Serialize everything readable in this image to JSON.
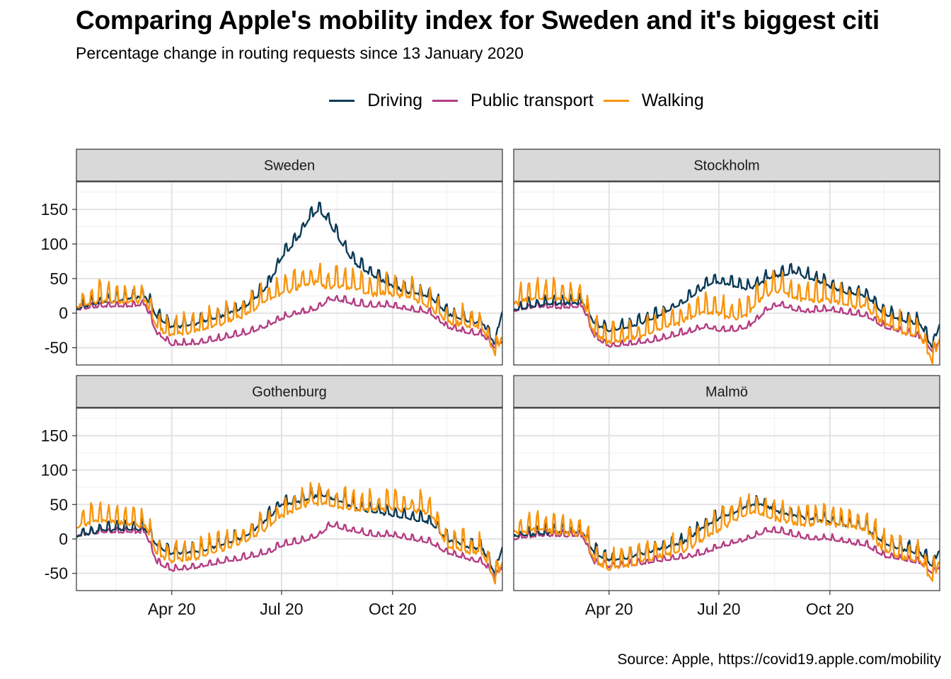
{
  "title": "Comparing Apple's mobility index for Sweden and it's biggest citi",
  "subtitle": "Percentage change in routing requests since 13 January 2020",
  "caption": "Source: Apple, https://covid19.apple.com/mobility",
  "legend": [
    {
      "label": "Driving",
      "color": "#0b3a56"
    },
    {
      "label": "Public transport",
      "color": "#b43e83"
    },
    {
      "label": "Walking",
      "color": "#f7950f"
    }
  ],
  "chart_data": {
    "type": "line",
    "facets": [
      "Sweden",
      "Stockholm",
      "Gothenburg",
      "Malmö"
    ],
    "x_range": [
      "2020-01-13",
      "2020-12-31"
    ],
    "ylim": [
      -75,
      190
    ],
    "y_ticks": [
      -50,
      0,
      50,
      100,
      150
    ],
    "y_tick_labels": [
      "-50",
      "0",
      "50",
      "100",
      "150"
    ],
    "x_ticks": [
      "2020-04-01",
      "2020-07-01",
      "2020-10-01"
    ],
    "x_tick_labels": [
      "Apr 20",
      "Jul 20",
      "Oct 20"
    ],
    "grid": true,
    "legend_position": "top",
    "panels": [
      {
        "facet": "Sweden",
        "series": [
          {
            "name": "Driving",
            "x": [
              "2020-01-13",
              "2020-02-01",
              "2020-02-20",
              "2020-03-10",
              "2020-03-20",
              "2020-04-01",
              "2020-04-20",
              "2020-05-10",
              "2020-06-01",
              "2020-06-20",
              "2020-07-01",
              "2020-07-15",
              "2020-07-25",
              "2020-08-01",
              "2020-08-10",
              "2020-08-20",
              "2020-09-01",
              "2020-09-15",
              "2020-10-01",
              "2020-10-15",
              "2020-11-01",
              "2020-11-15",
              "2020-12-01",
              "2020-12-15",
              "2020-12-25",
              "2020-12-31"
            ],
            "y": [
              8,
              15,
              20,
              25,
              -5,
              -20,
              -15,
              -5,
              10,
              40,
              80,
              110,
              140,
              150,
              130,
              100,
              70,
              55,
              40,
              30,
              25,
              0,
              -10,
              -15,
              -45,
              5
            ]
          },
          {
            "name": "Public transport",
            "x": [
              "2020-01-13",
              "2020-02-01",
              "2020-02-20",
              "2020-03-10",
              "2020-03-20",
              "2020-04-01",
              "2020-04-20",
              "2020-05-10",
              "2020-06-01",
              "2020-06-20",
              "2020-07-01",
              "2020-07-15",
              "2020-07-25",
              "2020-08-01",
              "2020-08-10",
              "2020-08-20",
              "2020-09-01",
              "2020-09-15",
              "2020-10-01",
              "2020-10-15",
              "2020-11-01",
              "2020-11-15",
              "2020-12-01",
              "2020-12-15",
              "2020-12-25",
              "2020-12-31"
            ],
            "y": [
              5,
              10,
              10,
              12,
              -30,
              -45,
              -45,
              -38,
              -30,
              -18,
              -8,
              0,
              3,
              8,
              20,
              18,
              12,
              10,
              10,
              5,
              0,
              -20,
              -28,
              -32,
              -50,
              -40
            ]
          },
          {
            "name": "Walking",
            "x": [
              "2020-01-13",
              "2020-02-01",
              "2020-02-20",
              "2020-03-10",
              "2020-03-20",
              "2020-04-01",
              "2020-04-20",
              "2020-05-10",
              "2020-06-01",
              "2020-06-20",
              "2020-07-01",
              "2020-07-15",
              "2020-07-25",
              "2020-08-01",
              "2020-08-10",
              "2020-08-20",
              "2020-09-01",
              "2020-09-15",
              "2020-10-01",
              "2020-10-15",
              "2020-11-01",
              "2020-11-15",
              "2020-12-01",
              "2020-12-15",
              "2020-12-25",
              "2020-12-31"
            ],
            "y": [
              10,
              20,
              18,
              20,
              -20,
              -30,
              -25,
              -15,
              0,
              20,
              30,
              40,
              45,
              45,
              40,
              40,
              35,
              30,
              30,
              25,
              10,
              -10,
              -15,
              -20,
              -60,
              -30
            ]
          }
        ]
      },
      {
        "facet": "Stockholm",
        "series": [
          {
            "name": "Driving",
            "x": [
              "2020-01-13",
              "2020-02-01",
              "2020-02-20",
              "2020-03-10",
              "2020-03-20",
              "2020-04-01",
              "2020-04-20",
              "2020-05-10",
              "2020-06-01",
              "2020-06-20",
              "2020-07-01",
              "2020-07-15",
              "2020-07-25",
              "2020-08-01",
              "2020-08-10",
              "2020-08-20",
              "2020-09-01",
              "2020-09-15",
              "2020-10-01",
              "2020-10-15",
              "2020-11-01",
              "2020-11-15",
              "2020-12-01",
              "2020-12-15",
              "2020-12-25",
              "2020-12-31"
            ],
            "y": [
              5,
              12,
              15,
              15,
              -15,
              -25,
              -18,
              -5,
              15,
              40,
              45,
              40,
              35,
              40,
              50,
              55,
              60,
              50,
              40,
              30,
              25,
              0,
              -10,
              -15,
              -50,
              -15
            ]
          },
          {
            "name": "Public transport",
            "x": [
              "2020-01-13",
              "2020-02-01",
              "2020-02-20",
              "2020-03-10",
              "2020-03-20",
              "2020-04-01",
              "2020-04-20",
              "2020-05-10",
              "2020-06-01",
              "2020-06-20",
              "2020-07-01",
              "2020-07-15",
              "2020-07-25",
              "2020-08-01",
              "2020-08-10",
              "2020-08-20",
              "2020-09-01",
              "2020-09-15",
              "2020-10-01",
              "2020-10-15",
              "2020-11-01",
              "2020-11-15",
              "2020-12-01",
              "2020-12-15",
              "2020-12-25",
              "2020-12-31"
            ],
            "y": [
              3,
              10,
              8,
              10,
              -35,
              -48,
              -45,
              -40,
              -30,
              -20,
              -25,
              -25,
              -20,
              -10,
              5,
              12,
              5,
              2,
              5,
              0,
              -5,
              -20,
              -28,
              -35,
              -55,
              -40
            ]
          },
          {
            "name": "Walking",
            "x": [
              "2020-01-13",
              "2020-02-01",
              "2020-02-20",
              "2020-03-10",
              "2020-03-20",
              "2020-04-01",
              "2020-04-20",
              "2020-05-10",
              "2020-06-01",
              "2020-06-20",
              "2020-07-01",
              "2020-07-15",
              "2020-07-25",
              "2020-08-01",
              "2020-08-10",
              "2020-08-20",
              "2020-09-01",
              "2020-09-15",
              "2020-10-01",
              "2020-10-15",
              "2020-11-01",
              "2020-11-15",
              "2020-12-01",
              "2020-12-15",
              "2020-12-25",
              "2020-12-31"
            ],
            "y": [
              15,
              25,
              22,
              20,
              -30,
              -40,
              -35,
              -25,
              -10,
              5,
              0,
              -5,
              0,
              15,
              30,
              35,
              25,
              20,
              20,
              15,
              10,
              -15,
              -25,
              -30,
              -70,
              -35
            ]
          }
        ]
      },
      {
        "facet": "Gothenburg",
        "series": [
          {
            "name": "Driving",
            "x": [
              "2020-01-13",
              "2020-02-01",
              "2020-02-20",
              "2020-03-10",
              "2020-03-20",
              "2020-04-01",
              "2020-04-20",
              "2020-05-10",
              "2020-06-01",
              "2020-06-20",
              "2020-07-01",
              "2020-07-15",
              "2020-07-25",
              "2020-08-01",
              "2020-08-10",
              "2020-08-20",
              "2020-09-01",
              "2020-09-15",
              "2020-10-01",
              "2020-10-15",
              "2020-11-01",
              "2020-11-15",
              "2020-12-01",
              "2020-12-15",
              "2020-12-25",
              "2020-12-31"
            ],
            "y": [
              5,
              12,
              15,
              15,
              -10,
              -20,
              -18,
              -10,
              5,
              30,
              50,
              55,
              60,
              65,
              60,
              55,
              45,
              40,
              35,
              30,
              25,
              0,
              -10,
              -15,
              -50,
              -10
            ]
          },
          {
            "name": "Public transport",
            "x": [
              "2020-01-13",
              "2020-02-01",
              "2020-02-20",
              "2020-03-10",
              "2020-03-20",
              "2020-04-01",
              "2020-04-20",
              "2020-05-10",
              "2020-06-01",
              "2020-06-20",
              "2020-07-01",
              "2020-07-15",
              "2020-07-25",
              "2020-08-01",
              "2020-08-10",
              "2020-08-20",
              "2020-09-01",
              "2020-09-15",
              "2020-10-01",
              "2020-10-15",
              "2020-11-01",
              "2020-11-15",
              "2020-12-01",
              "2020-12-15",
              "2020-12-25",
              "2020-12-31"
            ],
            "y": [
              5,
              10,
              10,
              10,
              -35,
              -45,
              -42,
              -35,
              -28,
              -20,
              -10,
              -5,
              0,
              5,
              20,
              15,
              10,
              5,
              5,
              0,
              -5,
              -20,
              -28,
              -35,
              -55,
              -40
            ]
          },
          {
            "name": "Walking",
            "x": [
              "2020-01-13",
              "2020-02-01",
              "2020-02-20",
              "2020-03-10",
              "2020-03-20",
              "2020-04-01",
              "2020-04-20",
              "2020-05-10",
              "2020-06-01",
              "2020-06-20",
              "2020-07-01",
              "2020-07-15",
              "2020-07-25",
              "2020-08-01",
              "2020-08-10",
              "2020-08-20",
              "2020-09-01",
              "2020-09-15",
              "2020-10-01",
              "2020-10-15",
              "2020-11-01",
              "2020-11-15",
              "2020-12-01",
              "2020-12-15",
              "2020-12-25",
              "2020-12-31"
            ],
            "y": [
              20,
              30,
              25,
              20,
              -20,
              -30,
              -25,
              -15,
              0,
              20,
              35,
              45,
              55,
              55,
              50,
              50,
              45,
              45,
              45,
              45,
              40,
              -10,
              -15,
              -20,
              -60,
              -30
            ]
          }
        ]
      },
      {
        "facet": "Malmö",
        "series": [
          {
            "name": "Driving",
            "x": [
              "2020-01-13",
              "2020-02-01",
              "2020-02-20",
              "2020-03-10",
              "2020-03-20",
              "2020-04-01",
              "2020-04-20",
              "2020-05-10",
              "2020-06-01",
              "2020-06-20",
              "2020-07-01",
              "2020-07-15",
              "2020-07-25",
              "2020-08-01",
              "2020-08-10",
              "2020-08-20",
              "2020-09-01",
              "2020-09-15",
              "2020-10-01",
              "2020-10-15",
              "2020-11-01",
              "2020-11-15",
              "2020-12-01",
              "2020-12-15",
              "2020-12-25",
              "2020-12-31"
            ],
            "y": [
              5,
              8,
              10,
              10,
              -20,
              -30,
              -25,
              -15,
              -5,
              20,
              30,
              40,
              48,
              52,
              48,
              40,
              35,
              30,
              25,
              20,
              15,
              -5,
              -15,
              -20,
              -40,
              -15
            ]
          },
          {
            "name": "Public transport",
            "x": [
              "2020-01-13",
              "2020-02-01",
              "2020-02-20",
              "2020-03-10",
              "2020-03-20",
              "2020-04-01",
              "2020-04-20",
              "2020-05-10",
              "2020-06-01",
              "2020-06-20",
              "2020-07-01",
              "2020-07-15",
              "2020-07-25",
              "2020-08-01",
              "2020-08-10",
              "2020-08-20",
              "2020-09-01",
              "2020-09-15",
              "2020-10-01",
              "2020-10-15",
              "2020-11-01",
              "2020-11-15",
              "2020-12-01",
              "2020-12-15",
              "2020-12-25",
              "2020-12-31"
            ],
            "y": [
              0,
              5,
              5,
              5,
              -35,
              -40,
              -38,
              -32,
              -28,
              -20,
              -12,
              -5,
              0,
              5,
              12,
              10,
              5,
              0,
              0,
              -5,
              -10,
              -25,
              -30,
              -35,
              -50,
              -40
            ]
          },
          {
            "name": "Walking",
            "x": [
              "2020-01-13",
              "2020-02-01",
              "2020-02-20",
              "2020-03-10",
              "2020-03-20",
              "2020-04-01",
              "2020-04-20",
              "2020-05-10",
              "2020-06-01",
              "2020-06-20",
              "2020-07-01",
              "2020-07-15",
              "2020-07-25",
              "2020-08-01",
              "2020-08-10",
              "2020-08-20",
              "2020-09-01",
              "2020-09-15",
              "2020-10-01",
              "2020-10-15",
              "2020-11-01",
              "2020-11-15",
              "2020-12-01",
              "2020-12-15",
              "2020-12-25",
              "2020-12-31"
            ],
            "y": [
              10,
              15,
              10,
              10,
              -30,
              -40,
              -35,
              -25,
              -15,
              5,
              15,
              30,
              40,
              40,
              35,
              30,
              25,
              25,
              25,
              20,
              15,
              -15,
              -25,
              -30,
              -60,
              -30
            ]
          }
        ]
      }
    ]
  }
}
